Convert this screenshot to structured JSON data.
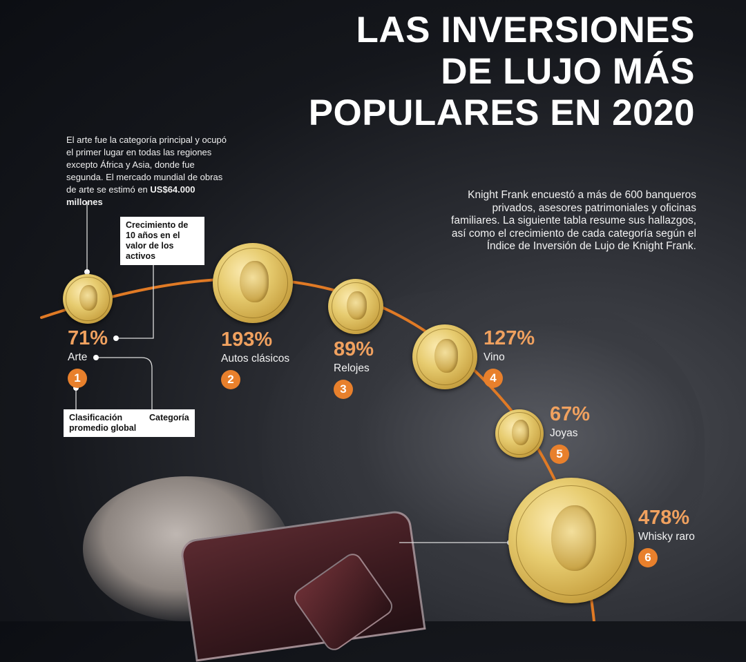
{
  "title": {
    "line1": "LAS INVERSIONES",
    "line2": "DE LUJO MÁS",
    "line3": "POPULARES EN 2020"
  },
  "intro": "Knight Frank encuestó a más de 600 banqueros privados, asesores patrimoniales y oficinas familiares. La siguiente tabla resume sus hallazgos, así como el crecimiento de cada categoría según el Índice de Inversión de Lujo de Knight Frank.",
  "art_note": {
    "text": "El arte fue la categoría principal y ocupó el primer lugar en todas las regiones excepto África y Asia, donde fue segunda. El mercado mundial de obras de arte se estimó en ",
    "bold": "US$64.000 millones"
  },
  "legend": {
    "growth": "Crecimiento de 10 años en el valor de los activos",
    "rank": "Clasificación promedio global",
    "category": "Categoría"
  },
  "colors": {
    "accent": "#e8802c",
    "percent": "#f0a15f",
    "arc": "#e07a25"
  },
  "chart_data": {
    "type": "bar",
    "title": "LAS INVERSIONES DE LUJO MÁS POPULARES EN 2020",
    "value_label": "Crecimiento de 10 años en el valor de los activos",
    "unit": "%",
    "categories": [
      "Arte",
      "Autos clásicos",
      "Relojes",
      "Vino",
      "Joyas",
      "Whisky raro"
    ],
    "ranks": [
      1,
      2,
      3,
      4,
      5,
      6
    ],
    "values": [
      71,
      193,
      89,
      127,
      67,
      478
    ],
    "labels": [
      "71%",
      "193%",
      "89%",
      "127%",
      "67%",
      "478%"
    ]
  }
}
